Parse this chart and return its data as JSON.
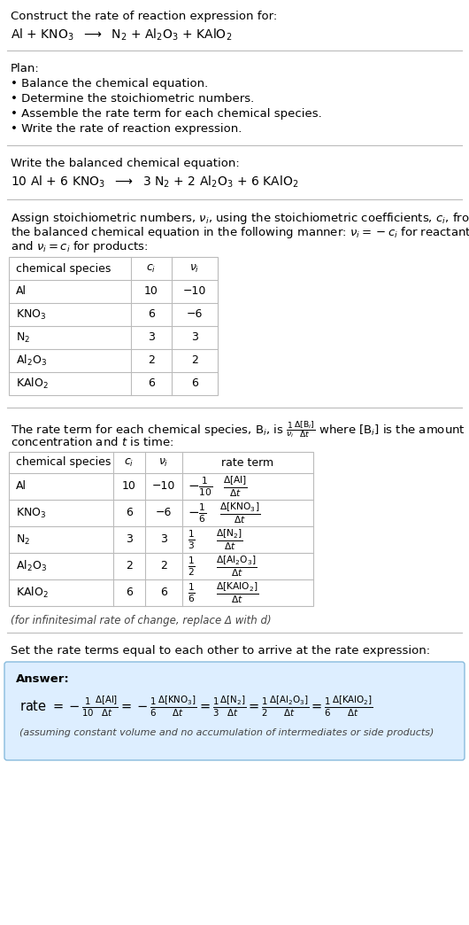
{
  "title_line1": "Construct the rate of reaction expression for:",
  "plan_header": "Plan:",
  "plan_items": [
    "• Balance the chemical equation.",
    "• Determine the stoichiometric numbers.",
    "• Assemble the rate term for each chemical species.",
    "• Write the rate of reaction expression."
  ],
  "balanced_header": "Write the balanced chemical equation:",
  "assign_text": [
    "Assign stoichiometric numbers, ν_i, using the stoichiometric coefficients, c_i, from",
    "the balanced chemical equation in the following manner: ν_i = −c_i for reactants",
    "and ν_i = c_i for products:"
  ],
  "table1_headers": [
    "chemical species",
    "c_i",
    "ν_i"
  ],
  "table1_rows": [
    [
      "Al",
      "10",
      "−10"
    ],
    [
      "KNO_3",
      "6",
      "−6"
    ],
    [
      "N_2",
      "3",
      "3"
    ],
    [
      "Al_2O_3",
      "2",
      "2"
    ],
    [
      "KAlO_2",
      "6",
      "6"
    ]
  ],
  "table2_headers": [
    "chemical species",
    "c_i",
    "ν_i",
    "rate term"
  ],
  "table2_rows": [
    [
      "Al",
      "10",
      "−10"
    ],
    [
      "KNO_3",
      "6",
      "−6"
    ],
    [
      "N_2",
      "3",
      "3"
    ],
    [
      "Al_2O_3",
      "2",
      "2"
    ],
    [
      "KAlO_2",
      "6",
      "6"
    ]
  ],
  "infinitesimal_note": "(for infinitesimal rate of change, replace Δ with d)",
  "set_rate_text": "Set the rate terms equal to each other to arrive at the rate expression:",
  "answer_box_color": "#ddeeff",
  "answer_border_color": "#88bbdd",
  "bg_color": "#ffffff",
  "text_color": "#000000",
  "grid_color": "#bbbbbb"
}
